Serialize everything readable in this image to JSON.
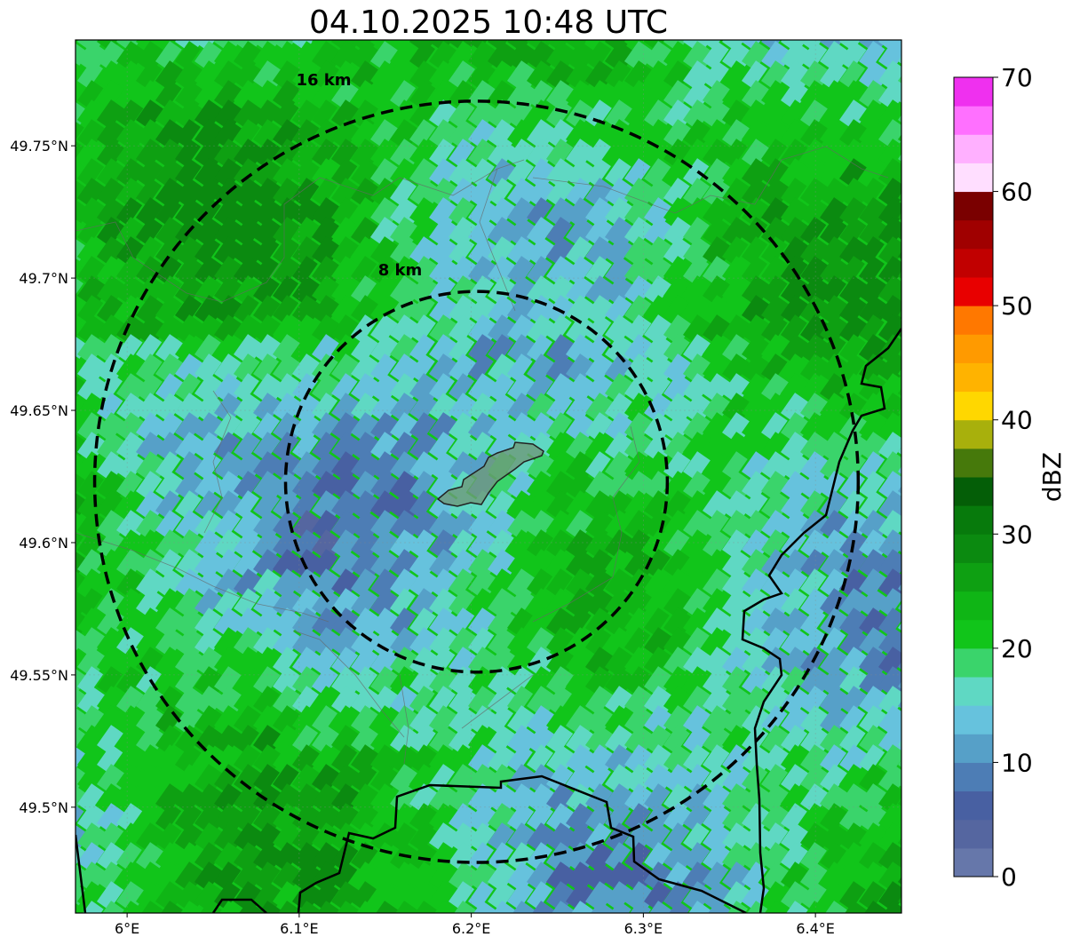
{
  "title": "04.10.2025 10:48 UTC",
  "map": {
    "lon_range": [
      5.97,
      6.45
    ],
    "lat_range": [
      49.46,
      49.79
    ],
    "center": {
      "lon": 6.203,
      "lat": 49.623
    },
    "lon_ticks": [
      {
        "value": 6.0,
        "label": "6°E"
      },
      {
        "value": 6.1,
        "label": "6.1°E"
      },
      {
        "value": 6.2,
        "label": "6.2°E"
      },
      {
        "value": 6.3,
        "label": "6.3°E"
      },
      {
        "value": 6.4,
        "label": "6.4°E"
      }
    ],
    "lat_ticks": [
      {
        "value": 49.75,
        "label": "49.75°N"
      },
      {
        "value": 49.7,
        "label": "49.7°N"
      },
      {
        "value": 49.65,
        "label": "49.65°N"
      },
      {
        "value": 49.6,
        "label": "49.6°N"
      },
      {
        "value": 49.55,
        "label": "49.55°N"
      },
      {
        "value": 49.5,
        "label": "49.5°N"
      }
    ],
    "range_rings": [
      {
        "radius_km": 8,
        "label": "8 km"
      },
      {
        "radius_km": 16,
        "label": "16 km"
      }
    ],
    "field_description": "radar reflectivity mostly 12-26 dBZ, weaker (5-12 dBZ) southwest of center",
    "ring_color": "#000000",
    "border_color": "#000000",
    "highlight_color": "#5e8f6e"
  },
  "colorbar": {
    "label": "dBZ",
    "min": 0,
    "max": 70,
    "step": 2.5,
    "ticks": [
      {
        "value": 0,
        "label": "0"
      },
      {
        "value": 10,
        "label": "10"
      },
      {
        "value": 20,
        "label": "20"
      },
      {
        "value": 30,
        "label": "30"
      },
      {
        "value": 40,
        "label": "40"
      },
      {
        "value": 50,
        "label": "50"
      },
      {
        "value": 60,
        "label": "60"
      },
      {
        "value": 70,
        "label": "70"
      }
    ],
    "colors": [
      "#6677aa",
      "#5566a0",
      "#4860a2",
      "#4d7db5",
      "#56a0c8",
      "#66c2dd",
      "#5fd8c3",
      "#3ad46b",
      "#11c51a",
      "#0fb515",
      "#0ea012",
      "#0b8a10",
      "#077a0c",
      "#045e07",
      "#46790b",
      "#a8b00c",
      "#ffd700",
      "#ffb300",
      "#ff9a00",
      "#ff7800",
      "#e80000",
      "#c10000",
      "#a00000",
      "#7a0000",
      "#ffdeff",
      "#ffb0ff",
      "#ff70ff",
      "#ef30ef"
    ]
  }
}
